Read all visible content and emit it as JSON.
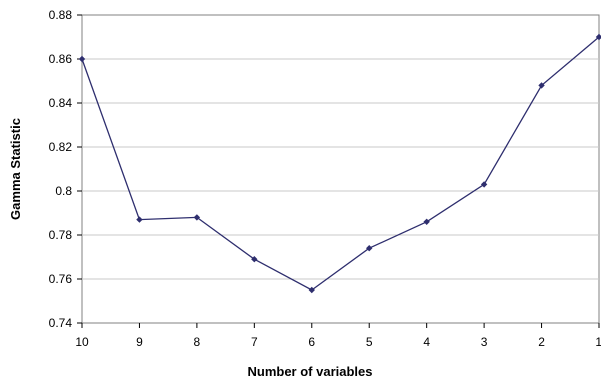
{
  "chart_data": {
    "type": "line",
    "title": "",
    "xlabel": "Number of variables",
    "ylabel": "Gamma Statistic",
    "categories": [
      "10",
      "9",
      "8",
      "7",
      "6",
      "5",
      "4",
      "3",
      "2",
      "1"
    ],
    "series": [
      {
        "values": [
          0.86,
          0.787,
          0.788,
          0.769,
          0.755,
          0.774,
          0.786,
          0.803,
          0.848,
          0.87
        ]
      }
    ],
    "ylim": [
      0.74,
      0.88
    ],
    "yticks": [
      "0.74",
      "0.76",
      "0.78",
      "0.8",
      "0.82",
      "0.84",
      "0.86",
      "0.88"
    ],
    "grid": true,
    "legend": "none",
    "colors": {
      "line": "#2e2e6e",
      "marker": "#2e2e6e",
      "grid": "#c8c8c8"
    }
  }
}
